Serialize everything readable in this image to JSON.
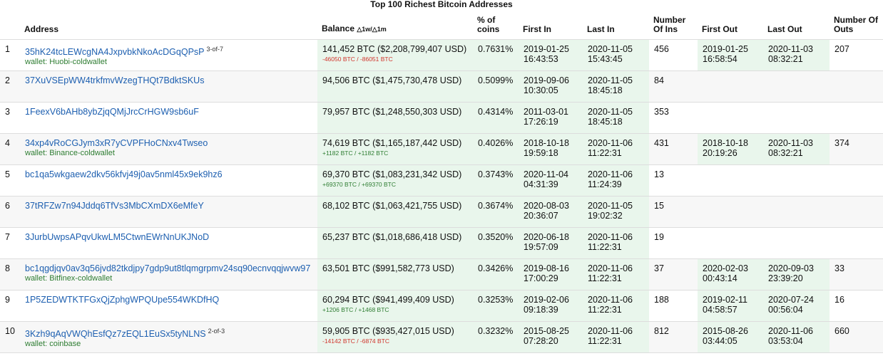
{
  "title": "Top 100 Richest Bitcoin Addresses",
  "table": {
    "headers": {
      "address": "Address",
      "balance": "Balance",
      "balance_change": "△1w/△1m",
      "percent": "% of coins",
      "first_in": "First In",
      "last_in": "Last In",
      "ins": "Number Of Ins",
      "first_out": "First Out",
      "last_out": "Last Out",
      "outs": "Number Of Outs"
    },
    "rows": [
      {
        "rank": "1",
        "address": "35hK24tcLEWcgNA4JxpvbkNkoAcDGqQPsP",
        "multisig": "3-of-7",
        "wallet": "wallet: Huobi-coldwallet",
        "balance": "141,452 BTC ($2,208,799,407 USD)",
        "change": "-46050 BTC / -86051 BTC",
        "percent": "0.7631%",
        "first_in": "2019-01-25 16:43:53",
        "last_in": "2020-11-05 15:43:45",
        "ins": "456",
        "first_out": "2019-01-25 16:58:54",
        "last_out": "2020-11-03 08:32:21",
        "outs": "207"
      },
      {
        "rank": "2",
        "address": "37XuVSEpWW4trkfmvWzegTHQt7BdktSKUs",
        "balance": "94,506 BTC ($1,475,730,478 USD)",
        "percent": "0.5099%",
        "first_in": "2019-09-06 10:30:05",
        "last_in": "2020-11-05 18:45:18",
        "ins": "84"
      },
      {
        "rank": "3",
        "address": "1FeexV6bAHb8ybZjqQMjJrcCrHGW9sb6uF",
        "balance": "79,957 BTC ($1,248,550,303 USD)",
        "percent": "0.4314%",
        "first_in": "2011-03-01 17:26:19",
        "last_in": "2020-11-05 18:45:18",
        "ins": "353"
      },
      {
        "rank": "4",
        "address": "34xp4vRoCGJym3xR7yCVPFHoCNxv4Twseo",
        "wallet": "wallet: Binance-coldwallet",
        "balance": "74,619 BTC ($1,165,187,442 USD)",
        "change": "+1182 BTC / +1182 BTC",
        "percent": "0.4026%",
        "first_in": "2018-10-18 19:59:18",
        "last_in": "2020-11-06 11:22:31",
        "ins": "431",
        "first_out": "2018-10-18 20:19:26",
        "last_out": "2020-11-03 08:32:21",
        "outs": "374"
      },
      {
        "rank": "5",
        "address": "bc1qa5wkgaew2dkv56kfvj49j0av5nml45x9ek9hz6",
        "balance": "69,370 BTC ($1,083,231,342 USD)",
        "change": "+69370 BTC / +69370 BTC",
        "percent": "0.3743%",
        "first_in": "2020-11-04 04:31:39",
        "last_in": "2020-11-06 11:24:39",
        "ins": "13"
      },
      {
        "rank": "6",
        "address": "37tRFZw7n94Jddq6TfVs3MbCXmDX6eMfeY",
        "balance": "68,102 BTC ($1,063,421,755 USD)",
        "percent": "0.3674%",
        "first_in": "2020-08-03 20:36:07",
        "last_in": "2020-11-05 19:02:32",
        "ins": "15"
      },
      {
        "rank": "7",
        "address": "3JurbUwpsAPqvUkwLM5CtwnEWrNnUKJNoD",
        "balance": "65,237 BTC ($1,018,686,418 USD)",
        "percent": "0.3520%",
        "first_in": "2020-06-18 19:57:09",
        "last_in": "2020-11-06 11:22:31",
        "ins": "19"
      },
      {
        "rank": "8",
        "address": "bc1qgdjqv0av3q56jvd82tkdjpy7gdp9ut8tlqmgrpmv24sq90ecnvqqjwvw97",
        "wallet": "wallet: Bitfinex-coldwallet",
        "balance": "63,501 BTC ($991,582,773 USD)",
        "percent": "0.3426%",
        "first_in": "2019-08-16 17:00:29",
        "last_in": "2020-11-06 11:22:31",
        "ins": "37",
        "first_out": "2020-02-03 00:43:14",
        "last_out": "2020-09-03 23:39:20",
        "outs": "33"
      },
      {
        "rank": "9",
        "address": "1P5ZEDWTKTFGxQjZphgWPQUpe554WKDfHQ",
        "balance": "60,294 BTC ($941,499,409 USD)",
        "change": "+1206 BTC / +1468 BTC",
        "percent": "0.3253%",
        "first_in": "2019-02-06 09:18:39",
        "last_in": "2020-11-06 11:22:31",
        "ins": "188",
        "first_out": "2019-02-11 04:58:57",
        "last_out": "2020-07-24 00:56:04",
        "outs": "16"
      },
      {
        "rank": "10",
        "address": "3Kzh9qAqVWQhEsfQz7zEQL1EuSx5tyNLNS",
        "multisig": "2-of-3",
        "wallet": "wallet: coinbase",
        "balance": "59,905 BTC ($935,427,015 USD)",
        "change": "-14142 BTC / -6874 BTC",
        "percent": "0.3232%",
        "first_in": "2015-08-25 07:28:20",
        "last_in": "2020-11-06 11:22:31",
        "ins": "812",
        "first_out": "2015-08-26 03:44:05",
        "last_out": "2020-11-06 03:53:04",
        "outs": "660"
      }
    ]
  }
}
